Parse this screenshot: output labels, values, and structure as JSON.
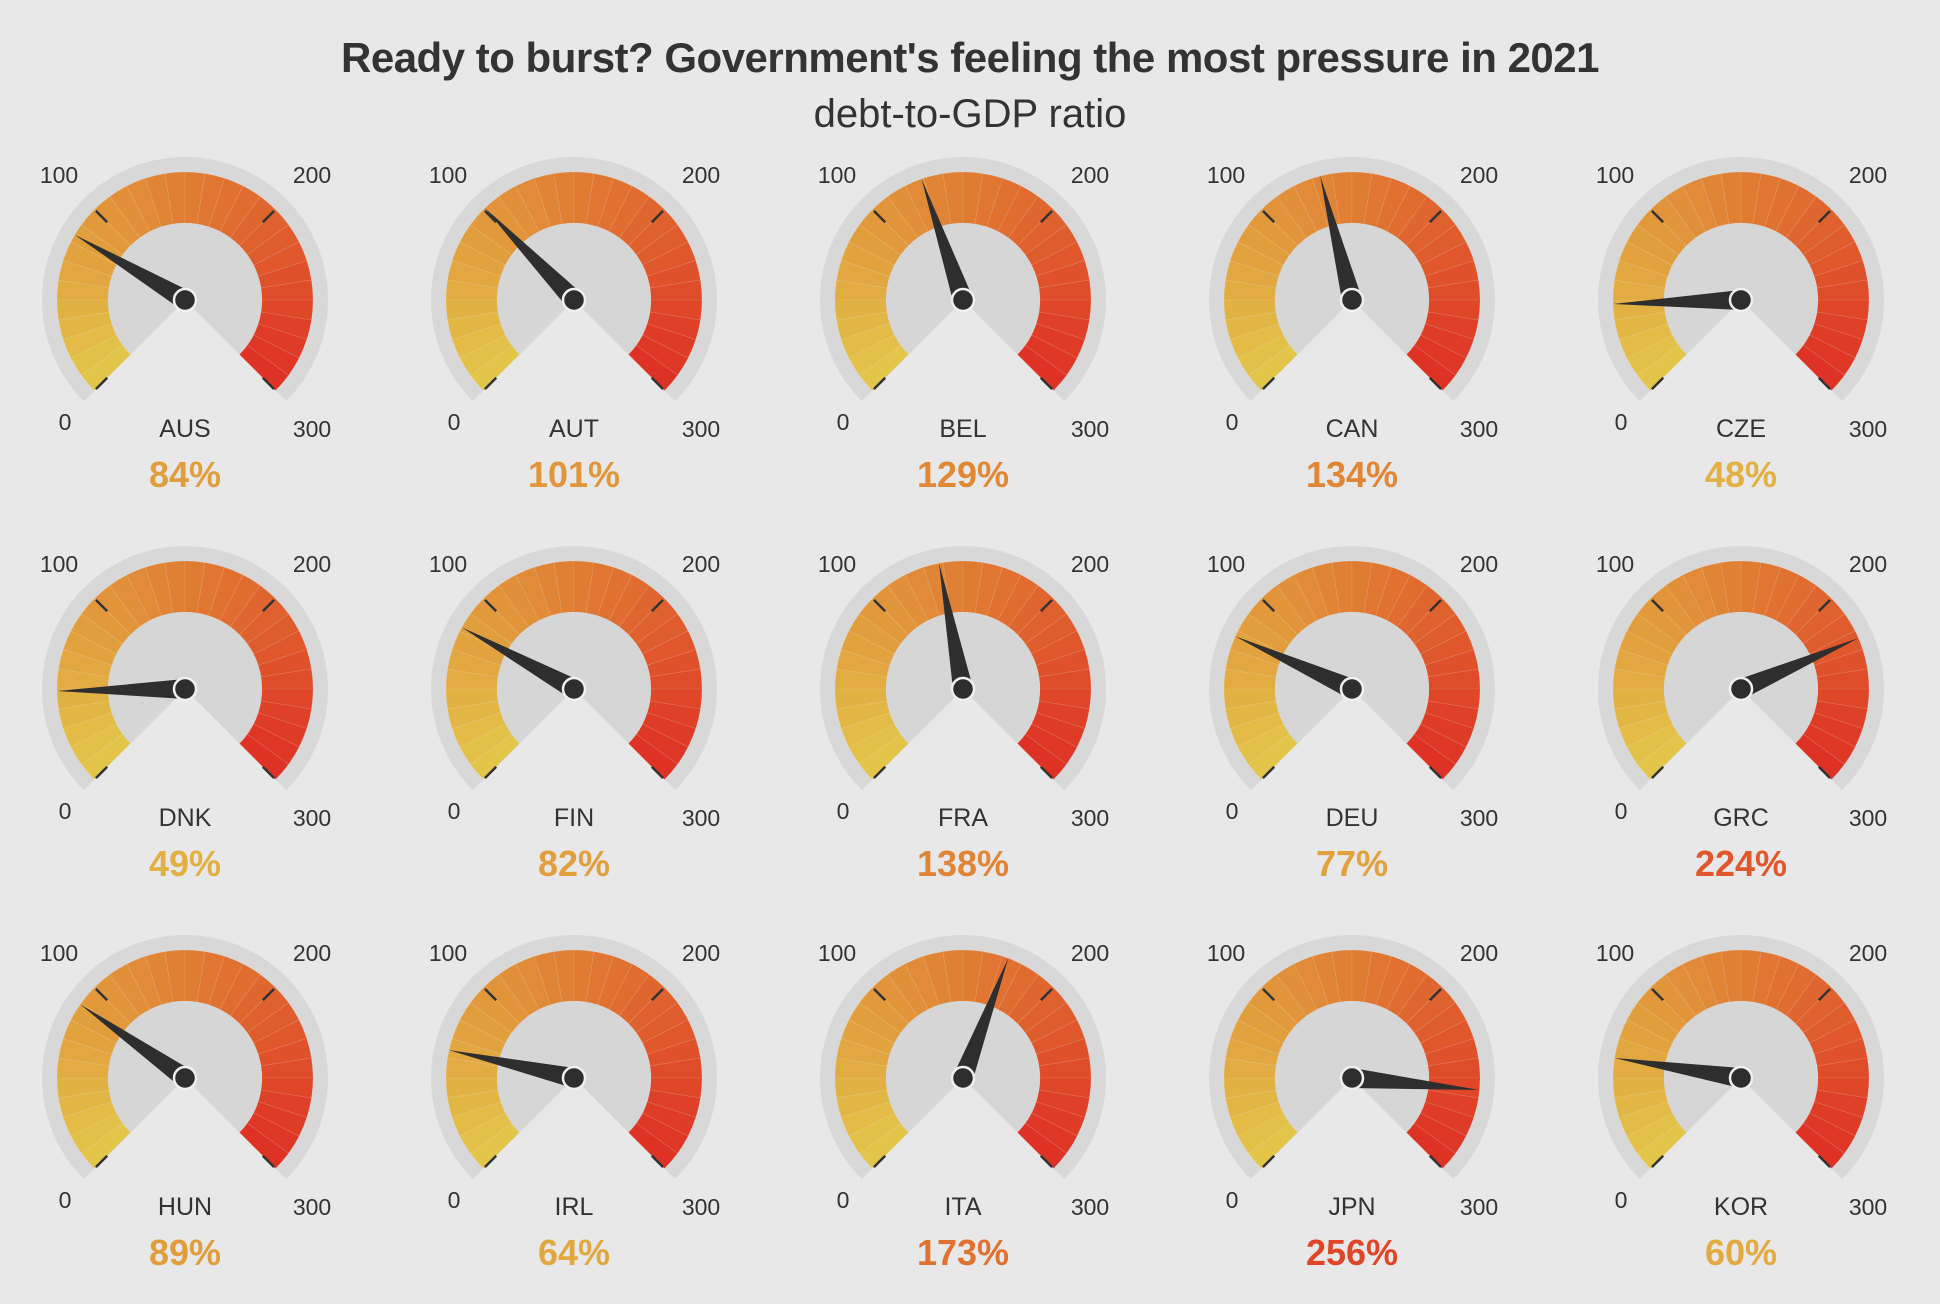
{
  "chart_data": {
    "type": "gauge",
    "title": "Ready to burst? Government's feeling the most pressure in 2021",
    "subtitle": "debt-to-GDP ratio",
    "scale": {
      "min": 0,
      "max": 300,
      "tick_labels": [
        "0",
        "100",
        "200",
        "300"
      ]
    },
    "value_suffix": "%",
    "colors": {
      "low": "#e3c74a",
      "mid": "#e07e33",
      "high": "#de2f23",
      "needle": "#2e2e2e",
      "track": "#d8d8d8",
      "inner": "#d6d6d6"
    },
    "items": [
      {
        "label": "AUS",
        "value": 84
      },
      {
        "label": "AUT",
        "value": 101
      },
      {
        "label": "BEL",
        "value": 129
      },
      {
        "label": "CAN",
        "value": 134
      },
      {
        "label": "CZE",
        "value": 48
      },
      {
        "label": "DNK",
        "value": 49
      },
      {
        "label": "FIN",
        "value": 82
      },
      {
        "label": "FRA",
        "value": 138
      },
      {
        "label": "DEU",
        "value": 77
      },
      {
        "label": "GRC",
        "value": 224
      },
      {
        "label": "HUN",
        "value": 89
      },
      {
        "label": "IRL",
        "value": 64
      },
      {
        "label": "ITA",
        "value": 173
      },
      {
        "label": "JPN",
        "value": 256
      },
      {
        "label": "KOR",
        "value": 60
      }
    ]
  }
}
